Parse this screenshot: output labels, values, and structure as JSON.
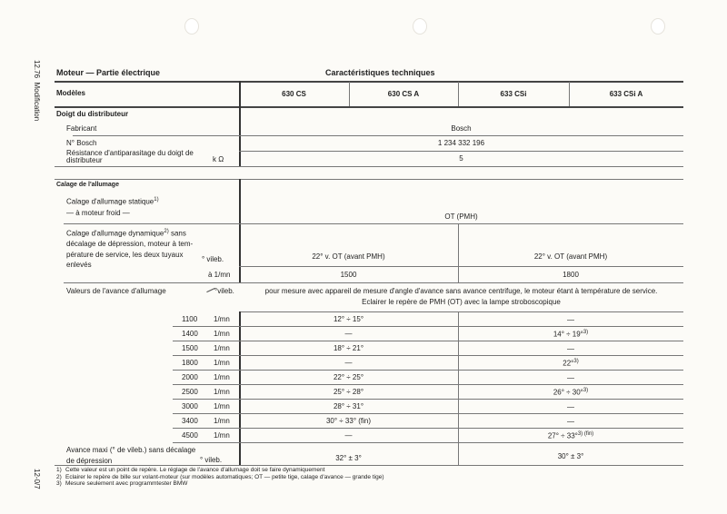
{
  "side": {
    "revision": "12.76",
    "modification": "Modification",
    "page_no": "12-0/7"
  },
  "header": {
    "section": "Moteur — Partie électrique",
    "title": "Caractéristiques techniques"
  },
  "models": {
    "label": "Modèles",
    "columns": [
      "630 CS",
      "630 CS A",
      "633 CSi",
      "633 CSi A"
    ]
  },
  "distributor": {
    "heading": "Doigt du distributeur",
    "maker_label": "Fabricant",
    "maker": "Bosch",
    "number_label": "N° Bosch",
    "number": "1 234 332 196",
    "resistance_label_1": "Résistance d'antiparasitage du doigt de",
    "resistance_label_2": "distributeur",
    "resistance_unit": "k Ω",
    "resistance": "5"
  },
  "timing": {
    "heading": "Calage de l'allumage",
    "static_label_1": "Calage d'allumage statique",
    "static_note": "1)",
    "static_label_2": "— à moteur froid —",
    "static_value": "OT (PMH)",
    "dynamic_label_1": "Calage d'allumage dynamique",
    "dynamic_note": "2)",
    "dynamic_label_1b": "sans",
    "dynamic_label_2": "décalage de dépression, moteur à tem-",
    "dynamic_label_3": "pérature de service, les deux tuyaux",
    "dynamic_label_4": "enlevés",
    "dynamic_unit": "° vileb.",
    "dynamic_left": "22° v. OT (avant PMH)",
    "dynamic_right": "22° v. OT (avant PMH)",
    "rpm_unit": "à 1/mn",
    "rpm_left": "1500",
    "rpm_right": "1800",
    "advance_label": "Valeurs de l'avance d'allumage",
    "advance_unit": "°vileb.",
    "advance_note_1": "pour mesure avec appareil de mesure d'angle d'avance sans avance centrifuge, le moteur étant à température de service.",
    "advance_note_2": "Eclairer le repère de PMH (OT) avec la lampe stroboscopique"
  },
  "advance_rows": [
    {
      "rpm": "1100",
      "unit": "1/mn",
      "left": "12° ÷ 15°",
      "right": "—",
      "right_note": ""
    },
    {
      "rpm": "1400",
      "unit": "1/mn",
      "left": "—",
      "right": "14° ÷ 19°",
      "right_note": "3)"
    },
    {
      "rpm": "1500",
      "unit": "1/mn",
      "left": "18° ÷ 21°",
      "right": "—",
      "right_note": ""
    },
    {
      "rpm": "1800",
      "unit": "1/mn",
      "left": "—",
      "right": "22°",
      "right_note": "3)"
    },
    {
      "rpm": "2000",
      "unit": "1/mn",
      "left": "22° ÷ 25°",
      "right": "—",
      "right_note": ""
    },
    {
      "rpm": "2500",
      "unit": "1/mn",
      "left": "25° ÷ 28°",
      "right": "26° ÷ 30°",
      "right_note": "3)"
    },
    {
      "rpm": "3000",
      "unit": "1/mn",
      "left": "28° ÷ 31°",
      "right": "—",
      "right_note": ""
    },
    {
      "rpm": "3400",
      "unit": "1/mn",
      "left": "30° ÷ 33° (fin)",
      "right": "—",
      "right_note": ""
    },
    {
      "rpm": "4500",
      "unit": "1/mn",
      "left": "—",
      "right": "27° ÷ 33°",
      "right_note": "3)   (fin)"
    }
  ],
  "max_advance": {
    "label_1": "Avance maxi (° de vileb.) sans décalage",
    "label_2": "de dépression",
    "unit": "° vileb.",
    "left": "32° ± 3°",
    "right": "30° ± 3°"
  },
  "footnotes": [
    {
      "mark": "1)",
      "text": "Cette valeur est un point de repère. Le réglage de l'avance d'allumage doit se faire dynamiquement"
    },
    {
      "mark": "2)",
      "text": "Eclairer le repère de bille sur volant-moteur (sur modèles automatiques; OT — petite tige, calage d'avance — grande tige)"
    },
    {
      "mark": "3)",
      "text": "Mesure seulement avec programmtester BMW"
    }
  ]
}
